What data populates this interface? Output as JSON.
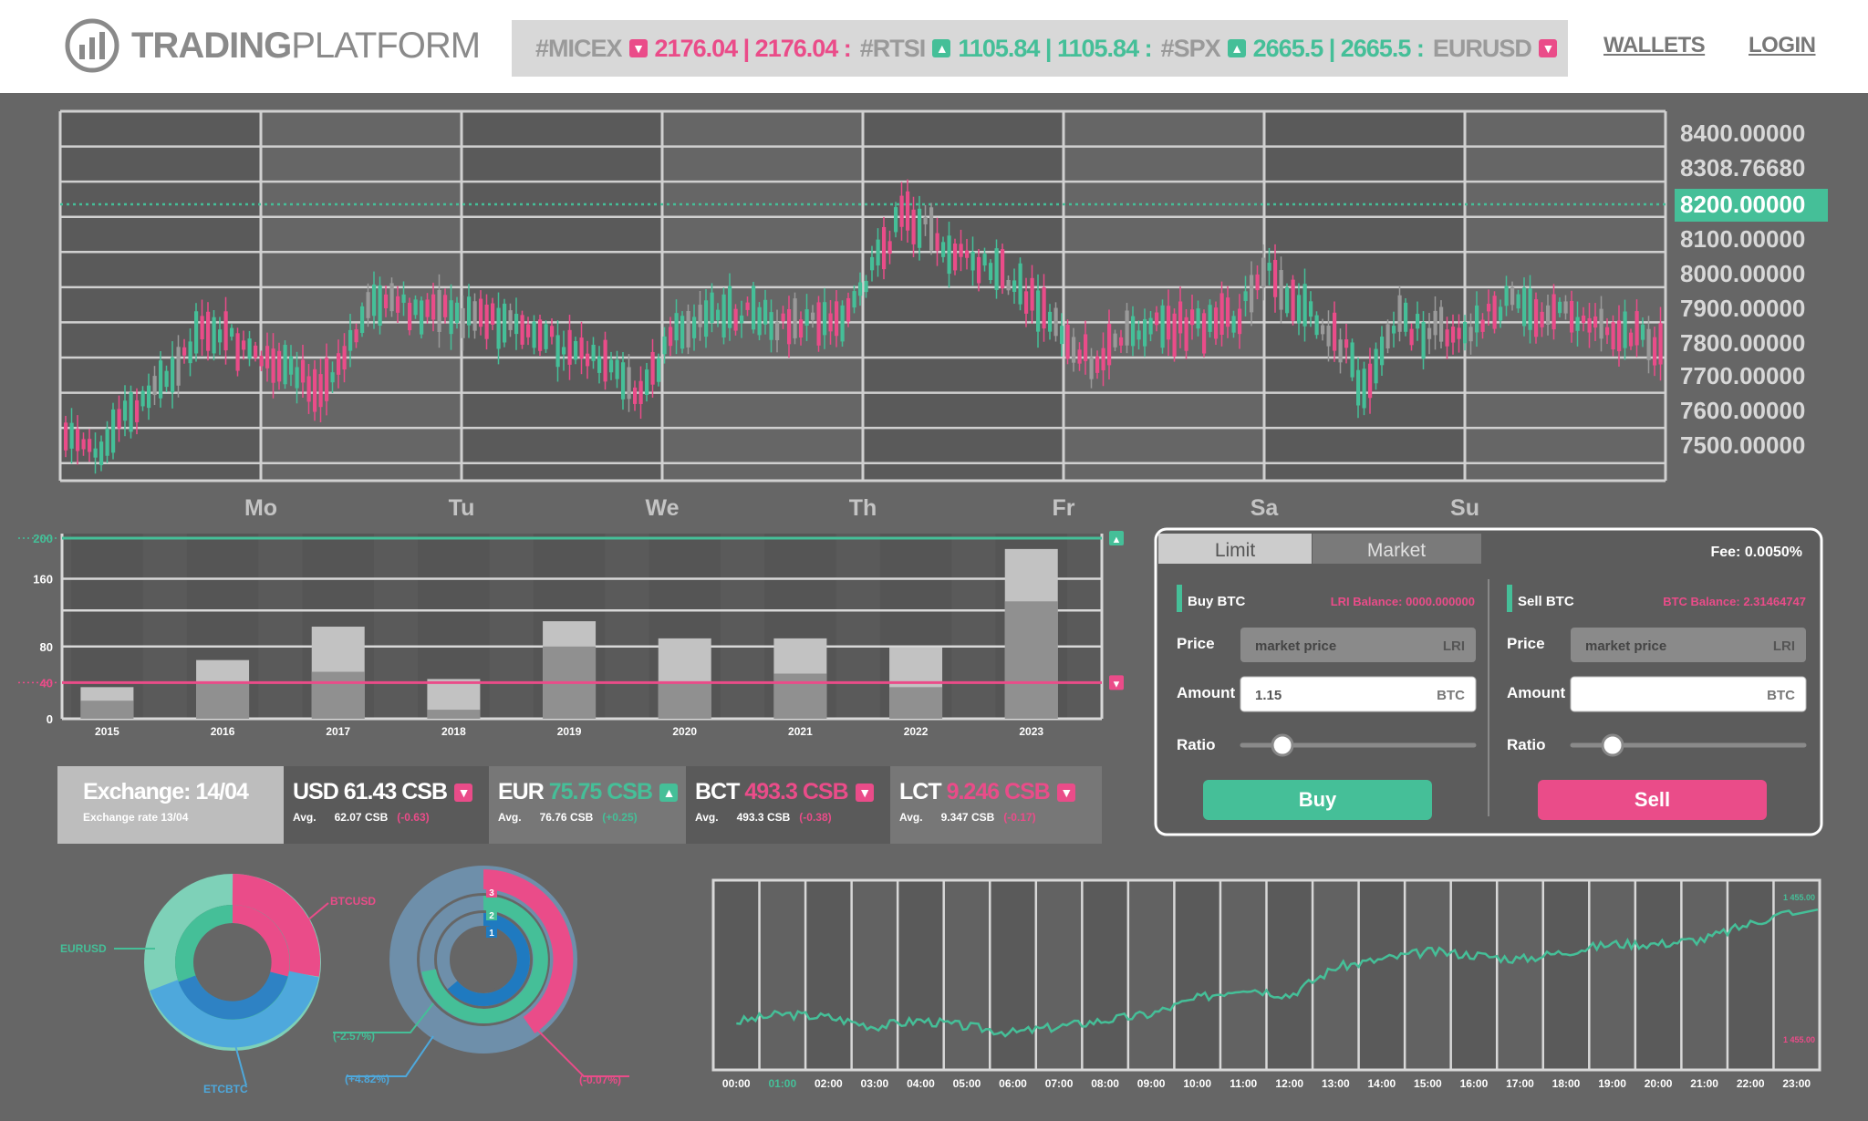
{
  "header": {
    "logo_bold": "TRADING",
    "logo_light": "PLATFORM",
    "ticker": [
      {
        "symbol": "#MICEX",
        "dir": "down",
        "value": "2176.04 | 2176.04 :"
      },
      {
        "symbol": "#RTSI",
        "dir": "up",
        "value": "1105.84 | 1105.84 :"
      },
      {
        "symbol": "#SPX",
        "dir": "up",
        "value": "2665.5 | 2665.5 :"
      },
      {
        "symbol": "EURUSD",
        "dir": "down",
        "value": ""
      }
    ],
    "nav": {
      "wallets": "WALLETS",
      "login": "LOGIN"
    }
  },
  "main_chart": {
    "y_labels": [
      "8400.00000",
      "8308.76680",
      "8200.00000",
      "8100.00000",
      "8000.00000",
      "7900.00000",
      "7800.00000",
      "7700.00000",
      "7600.00000",
      "7500.00000"
    ],
    "highlight_label": "8200.00000",
    "x_labels": [
      "Mo",
      "Tu",
      "We",
      "Th",
      "Fr",
      "Sa",
      "Su"
    ],
    "colors": {
      "up": "#45bf98",
      "down": "#ea4c89",
      "neutral": "#9a9a9a",
      "highlight": "#45bf98"
    }
  },
  "chart_data": [
    {
      "type": "bar",
      "categories": [
        "2015",
        "2016",
        "2017",
        "2018",
        "2019",
        "2020",
        "2021",
        "2022",
        "2023"
      ],
      "series": [
        {
          "values": [
            20,
            40,
            52,
            10,
            80,
            40,
            50,
            35,
            130
          ]
        },
        {
          "values": [
            35,
            65,
            102,
            44,
            108,
            89,
            89,
            79,
            188
          ]
        }
      ],
      "y_ticks": [
        "200",
        "160",
        "80",
        "40",
        "0"
      ],
      "ylim": [
        0,
        200
      ],
      "reference_lines": [
        {
          "value": 200,
          "color": "#45bf98"
        },
        {
          "value": 40,
          "color": "#ea4c89"
        }
      ]
    },
    {
      "type": "line",
      "x": [
        "00:00",
        "01:00",
        "02:00",
        "03:00",
        "04:00",
        "05:00",
        "06:00",
        "07:00",
        "08:00",
        "09:00",
        "10:00",
        "11:00",
        "12:00",
        "13:00",
        "14:00",
        "15:00",
        "16:00",
        "17:00",
        "18:00",
        "19:00",
        "20:00",
        "21:00",
        "22:00",
        "23:00"
      ],
      "values": [
        855,
        860,
        858,
        852,
        856,
        852,
        848,
        852,
        856,
        860,
        870,
        877,
        872,
        890,
        895,
        900,
        898,
        895,
        900,
        905,
        905,
        908,
        918,
        927
      ],
      "highlight_x": "01:00",
      "top_label": "1 455.00",
      "bottom_label": "1 455.00"
    }
  ],
  "bar_panel": {
    "y_labels": [
      "200",
      "160",
      "80",
      "40",
      "0"
    ]
  },
  "exchange": {
    "title": "Exchange: 14/04",
    "subtitle": "Exchange rate 13/04",
    "cards": [
      {
        "code": "USD",
        "value": "61.43 CSB",
        "dir": "down",
        "avg_label": "Avg.",
        "avg": "62.07 CSB",
        "change": "(-0.63)"
      },
      {
        "code": "EUR",
        "value": "75.75 CSB",
        "dir": "up",
        "avg_label": "Avg.",
        "avg": "76.76 CSB",
        "change": "(+0.25)"
      },
      {
        "code": "BCT",
        "value": "493.3 CSB",
        "dir": "down",
        "avg_label": "Avg.",
        "avg": "493.3 CSB",
        "change": "(-0.38)"
      },
      {
        "code": "LCT",
        "value": "9.246 CSB",
        "dir": "down",
        "avg_label": "Avg.",
        "avg": "9.347 CSB",
        "change": "(-0.17)"
      }
    ]
  },
  "trade": {
    "tabs": [
      "Limit",
      "Market"
    ],
    "fee": "Fee: 0.0050%",
    "buy": {
      "title": "Buy BTC",
      "balance": "LRI Balance: 0000.000000",
      "price_label": "Price",
      "price_placeholder": "market price",
      "price_unit": "LRI",
      "amount_label": "Amount",
      "amount_value": "1.15",
      "amount_unit": "BTC",
      "ratio_label": "Ratio",
      "button": "Buy"
    },
    "sell": {
      "title": "Sell BTC",
      "balance": "BTC Balance: 2.31464747",
      "price_label": "Price",
      "price_placeholder": "market price",
      "price_unit": "LRI",
      "amount_label": "Amount",
      "amount_value": "",
      "amount_unit": "BTC",
      "ratio_label": "Ratio",
      "button": "Sell"
    }
  },
  "donuts": {
    "left_labels": {
      "top": "BTCUSD",
      "left": "EURUSD",
      "bottom": "ETCBTC"
    },
    "right_labels": {
      "rings": [
        "3",
        "2",
        "1"
      ],
      "green": "(-2.57%)",
      "blue": "(+4.82%)",
      "pink": "(-0.07%)"
    }
  }
}
